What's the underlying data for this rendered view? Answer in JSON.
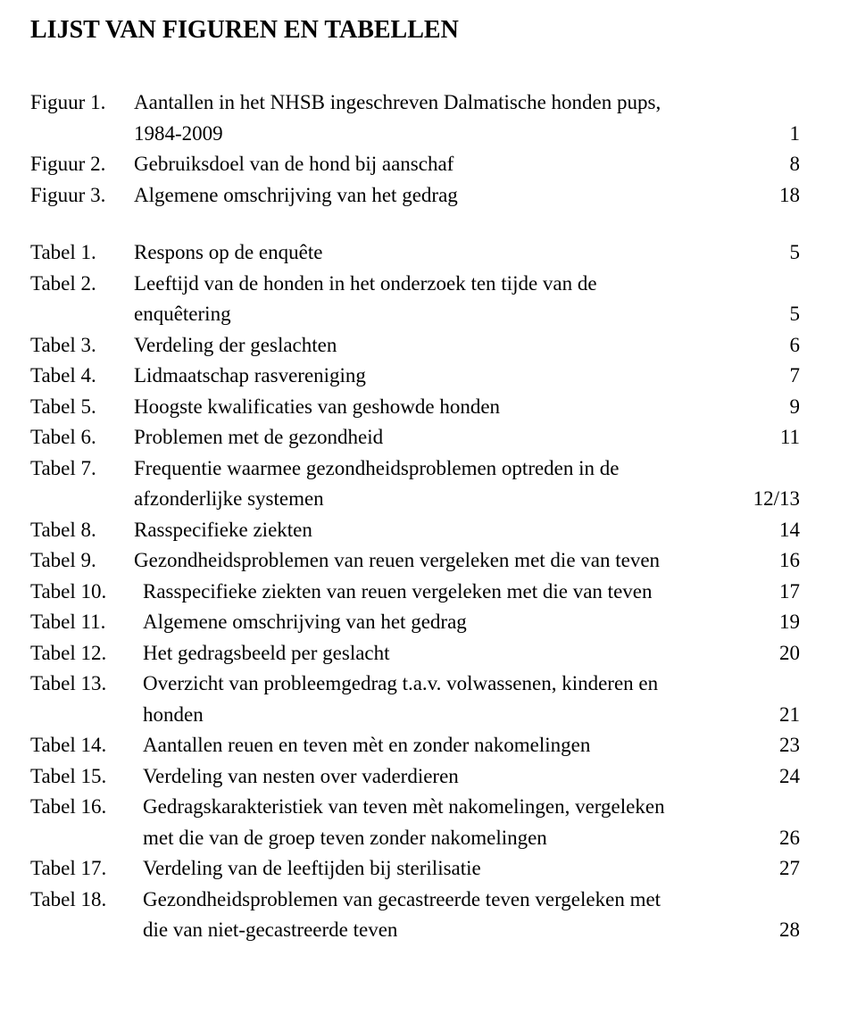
{
  "title": "LIJST VAN FIGUREN EN TABELLEN",
  "figures": [
    {
      "label": "Figuur 1.",
      "lines": [
        "Aantallen in het NHSB ingeschreven Dalmatische honden pups,",
        "1984-2009"
      ],
      "page": "1"
    },
    {
      "label": "Figuur 2.",
      "lines": [
        "Gebruiksdoel van de hond bij aanschaf"
      ],
      "page": "8"
    },
    {
      "label": "Figuur 3.",
      "lines": [
        "Algemene omschrijving van het gedrag"
      ],
      "page": "18"
    }
  ],
  "tables": [
    {
      "label": "Tabel 1.",
      "lines": [
        "Respons op de enquête"
      ],
      "page": "5"
    },
    {
      "label": "Tabel 2.",
      "lines": [
        "Leeftijd van de honden in het onderzoek ten tijde van de",
        "enquêtering"
      ],
      "page": "5"
    },
    {
      "label": "Tabel 3.",
      "lines": [
        "Verdeling der geslachten"
      ],
      "page": "6"
    },
    {
      "label": "Tabel 4.",
      "lines": [
        "Lidmaatschap rasvereniging"
      ],
      "page": "7"
    },
    {
      "label": "Tabel 5.",
      "lines": [
        "Hoogste kwalificaties van geshowde honden"
      ],
      "page": "9"
    },
    {
      "label": "Tabel 6.",
      "lines": [
        "Problemen met de gezondheid"
      ],
      "page": "11"
    },
    {
      "label": "Tabel 7.",
      "lines": [
        "Frequentie waarmee gezondheidsproblemen optreden in de",
        "afzonderlijke systemen"
      ],
      "page": "12/13"
    },
    {
      "label": "Tabel 8.",
      "lines": [
        "Rasspecifieke ziekten"
      ],
      "page": "14"
    },
    {
      "label": "Tabel 9.",
      "lines": [
        "Gezondheidsproblemen van reuen vergeleken met die van teven"
      ],
      "page": "16"
    },
    {
      "label": "Tabel 10.",
      "lines": [
        "Rasspecifieke ziekten van reuen vergeleken met die van teven"
      ],
      "page": "17"
    },
    {
      "label": "Tabel 11.",
      "lines": [
        "Algemene omschrijving van het gedrag"
      ],
      "page": "19"
    },
    {
      "label": "Tabel 12.",
      "lines": [
        "Het gedragsbeeld per geslacht"
      ],
      "page": "20"
    },
    {
      "label": "Tabel 13.",
      "lines": [
        "Overzicht van probleemgedrag t.a.v. volwassenen, kinderen en",
        "honden"
      ],
      "page": "21"
    },
    {
      "label": "Tabel 14.",
      "lines": [
        "Aantallen reuen en teven mèt en zonder nakomelingen"
      ],
      "page": "23"
    },
    {
      "label": "Tabel 15.",
      "lines": [
        "Verdeling van nesten over vaderdieren"
      ],
      "page": "24"
    },
    {
      "label": "Tabel 16.",
      "lines": [
        "Gedragskarakteristiek van teven mèt nakomelingen, vergeleken",
        "met die van de groep teven zonder nakomelingen"
      ],
      "page": "26"
    },
    {
      "label": "Tabel 17.",
      "lines": [
        "Verdeling van de leeftijden bij sterilisatie"
      ],
      "page": "27"
    },
    {
      "label": "Tabel 18.",
      "lines": [
        "Gezondheidsproblemen van gecastreerde teven vergeleken met",
        "die van niet-gecastreerde teven"
      ],
      "page": "28"
    }
  ]
}
